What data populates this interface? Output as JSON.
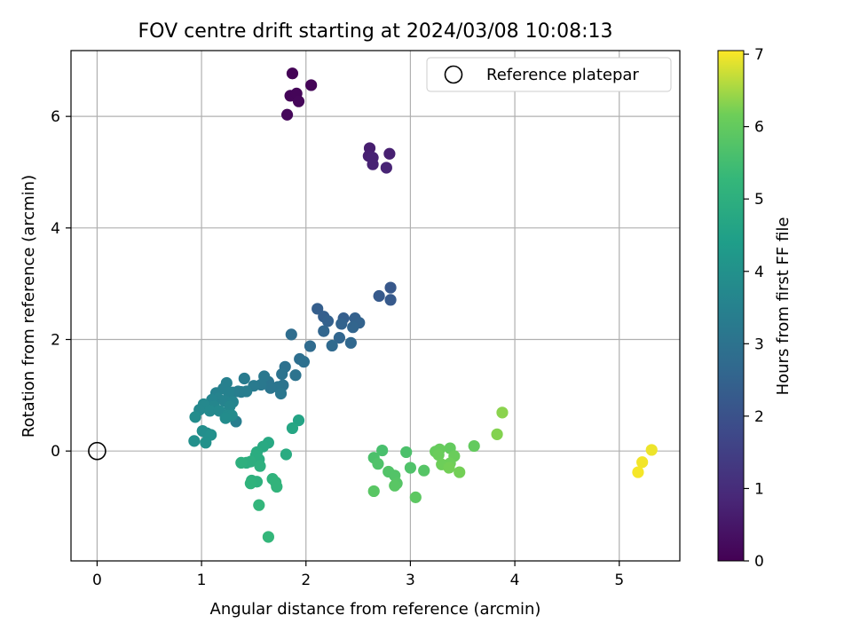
{
  "chart_data": {
    "type": "scatter",
    "title": "FOV centre drift starting at 2024/03/08 10:08:13",
    "xlabel": "Angular distance from reference (arcmin)",
    "ylabel": "Rotation from reference (arcmin)",
    "xlim": [
      -0.25,
      5.58
    ],
    "ylim": [
      -1.97,
      7.18
    ],
    "xticks": [
      0,
      1,
      2,
      3,
      4,
      5
    ],
    "yticks": [
      0,
      2,
      4,
      6
    ],
    "grid": true,
    "legend": {
      "placement": "top-right",
      "entries": [
        "Reference platepar"
      ]
    },
    "reference": {
      "x": 0,
      "y": 0
    },
    "colorbar": {
      "label": "Hours from first FF file",
      "range": [
        0,
        7.05
      ],
      "ticks": [
        0,
        1,
        2,
        3,
        4,
        5,
        6,
        7
      ],
      "colormap": "viridis"
    },
    "points": [
      {
        "x": 1.87,
        "y": 6.77,
        "h": 0.05
      },
      {
        "x": 2.05,
        "y": 6.56,
        "h": 0.08
      },
      {
        "x": 1.85,
        "y": 6.37,
        "h": 0.1
      },
      {
        "x": 1.91,
        "y": 6.41,
        "h": 0.1
      },
      {
        "x": 1.93,
        "y": 6.27,
        "h": 0.12
      },
      {
        "x": 1.82,
        "y": 6.03,
        "h": 0.15
      },
      {
        "x": 2.61,
        "y": 5.43,
        "h": 0.65
      },
      {
        "x": 2.8,
        "y": 5.33,
        "h": 0.7
      },
      {
        "x": 2.6,
        "y": 5.29,
        "h": 0.7
      },
      {
        "x": 2.64,
        "y": 5.26,
        "h": 0.75
      },
      {
        "x": 2.64,
        "y": 5.14,
        "h": 0.75
      },
      {
        "x": 2.77,
        "y": 5.08,
        "h": 0.8
      },
      {
        "x": 2.81,
        "y": 2.93,
        "h": 2.2
      },
      {
        "x": 2.7,
        "y": 2.78,
        "h": 2.25
      },
      {
        "x": 2.81,
        "y": 2.71,
        "h": 2.25
      },
      {
        "x": 2.11,
        "y": 2.55,
        "h": 2.35
      },
      {
        "x": 2.17,
        "y": 2.41,
        "h": 2.4
      },
      {
        "x": 2.36,
        "y": 2.38,
        "h": 2.4
      },
      {
        "x": 2.47,
        "y": 2.38,
        "h": 2.45
      },
      {
        "x": 2.21,
        "y": 2.33,
        "h": 2.45
      },
      {
        "x": 2.51,
        "y": 2.3,
        "h": 2.5
      },
      {
        "x": 2.34,
        "y": 2.28,
        "h": 2.5
      },
      {
        "x": 2.45,
        "y": 2.22,
        "h": 2.55
      },
      {
        "x": 2.17,
        "y": 2.15,
        "h": 2.6
      },
      {
        "x": 2.32,
        "y": 2.03,
        "h": 2.6
      },
      {
        "x": 2.43,
        "y": 1.94,
        "h": 2.65
      },
      {
        "x": 2.25,
        "y": 1.89,
        "h": 2.7
      },
      {
        "x": 2.04,
        "y": 1.88,
        "h": 2.75
      },
      {
        "x": 1.86,
        "y": 2.09,
        "h": 2.8
      },
      {
        "x": 1.94,
        "y": 1.65,
        "h": 2.85
      },
      {
        "x": 1.98,
        "y": 1.6,
        "h": 2.9
      },
      {
        "x": 1.8,
        "y": 1.51,
        "h": 2.95
      },
      {
        "x": 1.77,
        "y": 1.38,
        "h": 3.0
      },
      {
        "x": 1.9,
        "y": 1.36,
        "h": 3.0
      },
      {
        "x": 1.64,
        "y": 1.24,
        "h": 3.05
      },
      {
        "x": 1.78,
        "y": 1.18,
        "h": 3.05
      },
      {
        "x": 1.73,
        "y": 1.15,
        "h": 3.1
      },
      {
        "x": 1.66,
        "y": 1.13,
        "h": 3.1
      },
      {
        "x": 1.76,
        "y": 1.03,
        "h": 3.15
      },
      {
        "x": 1.6,
        "y": 1.34,
        "h": 3.2
      },
      {
        "x": 1.57,
        "y": 1.19,
        "h": 3.2
      },
      {
        "x": 1.5,
        "y": 1.17,
        "h": 3.25
      },
      {
        "x": 1.41,
        "y": 1.3,
        "h": 3.3
      },
      {
        "x": 1.38,
        "y": 1.06,
        "h": 3.3
      },
      {
        "x": 1.43,
        "y": 1.07,
        "h": 3.35
      },
      {
        "x": 1.35,
        "y": 1.07,
        "h": 3.35
      },
      {
        "x": 1.3,
        "y": 1.05,
        "h": 3.4
      },
      {
        "x": 1.33,
        "y": 0.53,
        "h": 3.4
      },
      {
        "x": 1.24,
        "y": 1.22,
        "h": 3.45
      },
      {
        "x": 1.21,
        "y": 1.12,
        "h": 3.45
      },
      {
        "x": 1.26,
        "y": 1.05,
        "h": 3.5
      },
      {
        "x": 1.14,
        "y": 1.04,
        "h": 3.5
      },
      {
        "x": 1.16,
        "y": 0.94,
        "h": 3.55
      },
      {
        "x": 1.22,
        "y": 0.9,
        "h": 3.55
      },
      {
        "x": 1.1,
        "y": 0.92,
        "h": 3.6
      },
      {
        "x": 1.3,
        "y": 0.88,
        "h": 3.6
      },
      {
        "x": 1.27,
        "y": 0.8,
        "h": 3.65
      },
      {
        "x": 1.12,
        "y": 0.8,
        "h": 3.65
      },
      {
        "x": 1.02,
        "y": 0.84,
        "h": 3.7
      },
      {
        "x": 0.98,
        "y": 0.74,
        "h": 3.7
      },
      {
        "x": 1.08,
        "y": 0.72,
        "h": 3.75
      },
      {
        "x": 1.17,
        "y": 0.72,
        "h": 3.75
      },
      {
        "x": 1.25,
        "y": 0.64,
        "h": 3.8
      },
      {
        "x": 1.29,
        "y": 0.64,
        "h": 3.8
      },
      {
        "x": 0.94,
        "y": 0.61,
        "h": 3.85
      },
      {
        "x": 1.23,
        "y": 0.59,
        "h": 3.85
      },
      {
        "x": 1.01,
        "y": 0.36,
        "h": 3.9
      },
      {
        "x": 1.05,
        "y": 0.32,
        "h": 3.9
      },
      {
        "x": 1.09,
        "y": 0.29,
        "h": 3.95
      },
      {
        "x": 0.93,
        "y": 0.18,
        "h": 3.95
      },
      {
        "x": 1.04,
        "y": 0.15,
        "h": 4.0
      },
      {
        "x": 1.93,
        "y": 0.55,
        "h": 4.6
      },
      {
        "x": 1.87,
        "y": 0.41,
        "h": 4.7
      },
      {
        "x": 1.64,
        "y": 0.15,
        "h": 4.75
      },
      {
        "x": 1.59,
        "y": 0.08,
        "h": 4.8
      },
      {
        "x": 1.81,
        "y": -0.06,
        "h": 4.85
      },
      {
        "x": 1.53,
        "y": -0.02,
        "h": 4.85
      },
      {
        "x": 1.52,
        "y": -0.08,
        "h": 4.9
      },
      {
        "x": 1.55,
        "y": -0.15,
        "h": 4.9
      },
      {
        "x": 1.47,
        "y": -0.19,
        "h": 4.95
      },
      {
        "x": 1.43,
        "y": -0.21,
        "h": 4.95
      },
      {
        "x": 1.38,
        "y": -0.21,
        "h": 5.0
      },
      {
        "x": 1.56,
        "y": -0.27,
        "h": 5.0
      },
      {
        "x": 1.48,
        "y": -0.53,
        "h": 5.05
      },
      {
        "x": 1.53,
        "y": -0.55,
        "h": 5.05
      },
      {
        "x": 1.47,
        "y": -0.58,
        "h": 5.1
      },
      {
        "x": 1.68,
        "y": -0.5,
        "h": 5.1
      },
      {
        "x": 1.71,
        "y": -0.56,
        "h": 5.15
      },
      {
        "x": 1.72,
        "y": -0.64,
        "h": 5.15
      },
      {
        "x": 1.55,
        "y": -0.97,
        "h": 5.2
      },
      {
        "x": 1.64,
        "y": -1.54,
        "h": 5.25
      },
      {
        "x": 2.73,
        "y": 0.01,
        "h": 5.6
      },
      {
        "x": 2.96,
        "y": -0.02,
        "h": 5.65
      },
      {
        "x": 2.65,
        "y": -0.12,
        "h": 5.65
      },
      {
        "x": 2.69,
        "y": -0.23,
        "h": 5.7
      },
      {
        "x": 3.0,
        "y": -0.3,
        "h": 5.7
      },
      {
        "x": 2.79,
        "y": -0.37,
        "h": 5.75
      },
      {
        "x": 2.85,
        "y": -0.44,
        "h": 5.75
      },
      {
        "x": 3.13,
        "y": -0.35,
        "h": 5.8
      },
      {
        "x": 2.87,
        "y": -0.58,
        "h": 5.8
      },
      {
        "x": 2.85,
        "y": -0.62,
        "h": 5.85
      },
      {
        "x": 2.65,
        "y": -0.72,
        "h": 5.85
      },
      {
        "x": 3.05,
        "y": -0.83,
        "h": 5.9
      },
      {
        "x": 3.61,
        "y": 0.09,
        "h": 6.0
      },
      {
        "x": 3.38,
        "y": 0.05,
        "h": 6.0
      },
      {
        "x": 3.28,
        "y": 0.03,
        "h": 6.05
      },
      {
        "x": 3.24,
        "y": -0.01,
        "h": 6.05
      },
      {
        "x": 3.42,
        "y": -0.09,
        "h": 6.1
      },
      {
        "x": 3.27,
        "y": -0.07,
        "h": 6.1
      },
      {
        "x": 3.38,
        "y": -0.22,
        "h": 6.15
      },
      {
        "x": 3.3,
        "y": -0.24,
        "h": 6.15
      },
      {
        "x": 3.37,
        "y": -0.3,
        "h": 6.2
      },
      {
        "x": 3.47,
        "y": -0.38,
        "h": 6.2
      },
      {
        "x": 3.83,
        "y": 0.3,
        "h": 6.3
      },
      {
        "x": 3.88,
        "y": 0.69,
        "h": 6.35
      },
      {
        "x": 5.31,
        "y": 0.02,
        "h": 6.95
      },
      {
        "x": 5.22,
        "y": -0.2,
        "h": 6.98
      },
      {
        "x": 5.18,
        "y": -0.38,
        "h": 7.0
      }
    ]
  }
}
